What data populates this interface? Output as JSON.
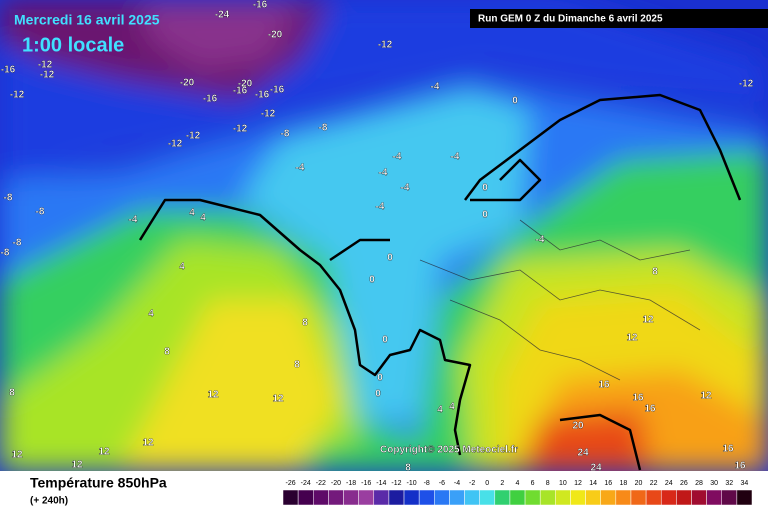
{
  "header": {
    "date": "Mercredi 16 avril 2025",
    "time": "1:00 locale",
    "run": "Run GEM 0 Z du Dimanche 6 avril 2025"
  },
  "map": {
    "copyright": "Copyright© 2025 Meteociel.fr",
    "contour_labels": [
      -24,
      -16,
      -20,
      -12,
      -16,
      -12,
      -12,
      -12,
      -20,
      -20,
      -16,
      -16,
      -16,
      -16,
      -12,
      -12,
      -12,
      -12,
      -8,
      -8,
      -4,
      -4,
      -4,
      -4,
      -4,
      -4,
      -4,
      -4,
      -8,
      -8,
      -8,
      -8,
      -12,
      0,
      0,
      0,
      0,
      0,
      0,
      0,
      0,
      4,
      4,
      4,
      4,
      8,
      8,
      8,
      8,
      8,
      8,
      12,
      12,
      12,
      12,
      12,
      12,
      12,
      12,
      12,
      16,
      16,
      16,
      16,
      20,
      24,
      24,
      16,
      4,
      4,
      -4
    ]
  },
  "footer": {
    "title": "Température 850hPa",
    "subtitle": "(+ 240h)"
  },
  "legend": {
    "values": [
      -26,
      -24,
      -22,
      -20,
      -18,
      -16,
      -14,
      -12,
      -10,
      -8,
      -6,
      -4,
      -2,
      0,
      2,
      4,
      6,
      8,
      10,
      12,
      14,
      16,
      18,
      20,
      22,
      24,
      26,
      28,
      30,
      32,
      34
    ],
    "colors": [
      "#2a0030",
      "#45004f",
      "#5e0a68",
      "#741a7c",
      "#882c8e",
      "#9a3ea0",
      "#5a2aa8",
      "#1c1ca0",
      "#1430c8",
      "#1e50e8",
      "#2a78f4",
      "#3aa0f8",
      "#40c4f4",
      "#48e0e8",
      "#30d070",
      "#40d040",
      "#70dc30",
      "#a8e428",
      "#d0e820",
      "#f0e818",
      "#f8cc18",
      "#f8a818",
      "#f88a18",
      "#f06818",
      "#e84818",
      "#d82818",
      "#c01818",
      "#a00c30",
      "#800c60",
      "#600848",
      "#200010"
    ]
  }
}
